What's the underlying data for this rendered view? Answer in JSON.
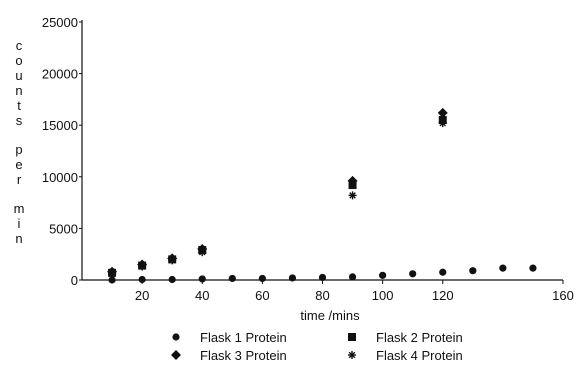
{
  "chart_data": {
    "type": "scatter",
    "title": "",
    "xlabel": "time /mins",
    "ylabel": "counts per min",
    "xlim": [
      0,
      160
    ],
    "ylim": [
      0,
      25000
    ],
    "x_ticks": [
      20,
      40,
      60,
      80,
      100,
      120,
      160
    ],
    "y_ticks": [
      0,
      5000,
      10000,
      15000,
      20000,
      25000
    ],
    "grid": false,
    "legend_position": "bottom",
    "series": [
      {
        "name": "Flask 1 Protein",
        "marker": "circle",
        "points": [
          [
            10,
            0
          ],
          [
            20,
            50
          ],
          [
            30,
            50
          ],
          [
            40,
            100
          ],
          [
            50,
            150
          ],
          [
            60,
            150
          ],
          [
            70,
            200
          ],
          [
            80,
            250
          ],
          [
            90,
            300
          ],
          [
            100,
            450
          ],
          [
            110,
            600
          ],
          [
            120,
            750
          ],
          [
            130,
            900
          ],
          [
            140,
            1150
          ],
          [
            150,
            1150
          ]
        ]
      },
      {
        "name": "Flask 2 Protein",
        "marker": "square",
        "points": [
          [
            10,
            700
          ],
          [
            20,
            1400
          ],
          [
            30,
            2000
          ],
          [
            40,
            2900
          ],
          [
            90,
            9200
          ],
          [
            120,
            15500
          ]
        ]
      },
      {
        "name": "Flask 3 Protein",
        "marker": "diamond",
        "points": [
          [
            10,
            800
          ],
          [
            20,
            1500
          ],
          [
            30,
            2100
          ],
          [
            40,
            3000
          ],
          [
            90,
            9600
          ],
          [
            120,
            16200
          ]
        ]
      },
      {
        "name": "Flask 4 Protein",
        "marker": "asterisk",
        "points": [
          [
            10,
            600
          ],
          [
            20,
            1300
          ],
          [
            30,
            1900
          ],
          [
            40,
            2700
          ],
          [
            90,
            8200
          ],
          [
            120,
            15200
          ]
        ]
      }
    ]
  }
}
